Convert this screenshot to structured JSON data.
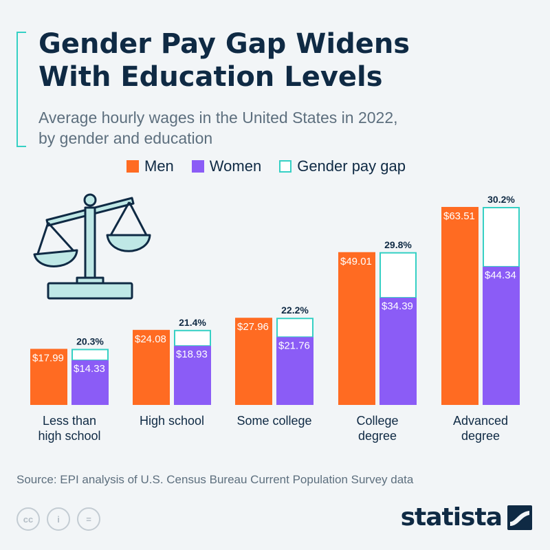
{
  "header": {
    "title": "Gender Pay Gap Widens\nWith Education Levels",
    "subtitle": "Average hourly wages in the United States in 2022,\nby gender and education"
  },
  "legend": {
    "men": "Men",
    "women": "Women",
    "gap": "Gender pay gap"
  },
  "colors": {
    "men": "#ff6b22",
    "women": "#8b5cf6",
    "gap": "#35d0c4",
    "text": "#0f2a44",
    "scale_icon": "#bfe8e6"
  },
  "icons": [
    "balance-scale-icon",
    "cc-icon",
    "attribution-icon",
    "equal-icon",
    "statista-logo"
  ],
  "footer": {
    "source": "Source: EPI analysis of U.S. Census Bureau Current Population Survey data",
    "brand": "statista",
    "cc_labels": [
      "cc",
      "i",
      "="
    ]
  },
  "chart_data": {
    "type": "bar",
    "categories": [
      "Less than\nhigh school",
      "High school",
      "Some college",
      "College\ndegree",
      "Advanced\ndegree"
    ],
    "series": [
      {
        "name": "Men",
        "values": [
          17.99,
          24.08,
          27.96,
          49.01,
          63.51
        ],
        "labels": [
          "$17.99",
          "$24.08",
          "$27.96",
          "$49.01",
          "$63.51"
        ]
      },
      {
        "name": "Women",
        "values": [
          14.33,
          18.93,
          21.76,
          34.39,
          44.34
        ],
        "labels": [
          "$14.33",
          "$18.93",
          "$21.76",
          "$34.39",
          "$44.34"
        ]
      }
    ],
    "gap": {
      "name": "Gender pay gap",
      "labels": [
        "20.3%",
        "21.4%",
        "22.2%",
        "29.8%",
        "30.2%"
      ]
    },
    "ylim": [
      0,
      63.51
    ],
    "grid": false,
    "legend_position": "top"
  }
}
